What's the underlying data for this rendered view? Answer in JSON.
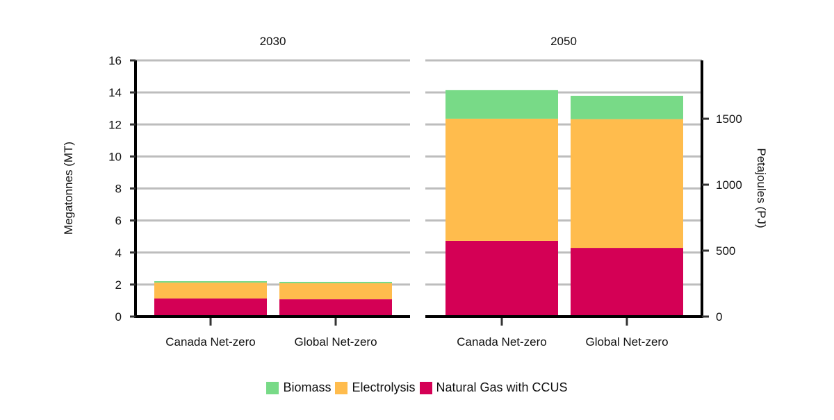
{
  "chart_data": {
    "type": "bar",
    "stacked": true,
    "panels": [
      {
        "title": "2030",
        "categories": [
          "Canada Net-zero",
          "Global Net-zero"
        ]
      },
      {
        "title": "2050",
        "categories": [
          "Canada Net-zero",
          "Global Net-zero"
        ]
      }
    ],
    "series": [
      {
        "name": "Natural Gas with CCUS",
        "color": "#d40055",
        "values": {
          "2030": [
            1.13,
            1.08
          ],
          "2050": [
            4.73,
            4.29
          ]
        }
      },
      {
        "name": "Electrolysis",
        "color": "#ffbc4d",
        "values": {
          "2030": [
            0.99,
            1.0
          ],
          "2050": [
            7.63,
            8.04
          ]
        }
      },
      {
        "name": "Biomass",
        "color": "#78da87",
        "values": {
          "2030": [
            0.09,
            0.09
          ],
          "2050": [
            1.78,
            1.46
          ]
        }
      }
    ],
    "ylabel": "Megatonnes (MT)",
    "ylim": [
      0,
      16
    ],
    "yticks": [
      "0",
      "2",
      "4",
      "6",
      "8",
      "10",
      "12",
      "14",
      "16"
    ],
    "y2label": "Petajoules (PJ)",
    "y2ticks": [
      "0",
      "500",
      "1000",
      "1500"
    ],
    "y2_per_y": 121.4,
    "grid": true,
    "legend_placement": "bottom",
    "legend_order": [
      "Biomass",
      "Electrolysis",
      "Natural Gas with CCUS"
    ]
  }
}
